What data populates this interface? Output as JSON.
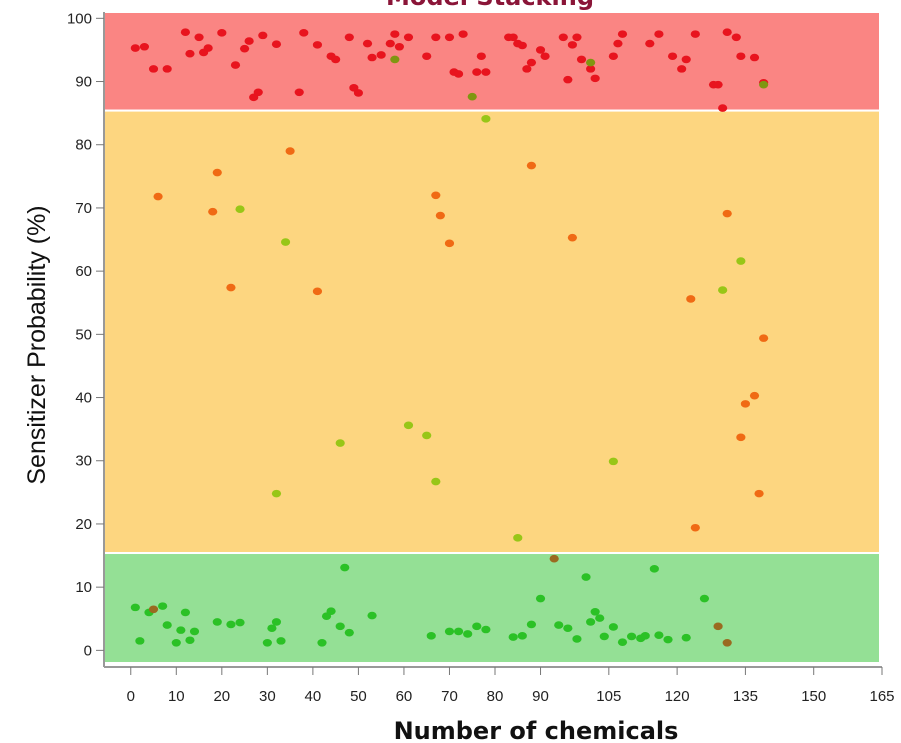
{
  "chart_data": {
    "type": "scatter",
    "title": "Model Stacking",
    "xlabel": "Number of chemicals",
    "ylabel": "Sensitizer Probability (%)",
    "xlim": [
      -5,
      165
    ],
    "ylim": [
      -2,
      101
    ],
    "x_ticks": [
      0,
      10,
      20,
      30,
      40,
      50,
      60,
      70,
      80,
      90,
      105,
      120,
      135,
      150,
      165
    ],
    "x_tick_labels": [
      "0",
      "10",
      "20",
      "30",
      "40",
      "50",
      "60",
      "70",
      "80",
      "90",
      "105",
      "120",
      "135",
      "150",
      "165"
    ],
    "y_ticks": [
      0,
      10,
      20,
      30,
      40,
      50,
      60,
      70,
      80,
      90,
      100
    ],
    "y_tick_labels": [
      "0",
      "10",
      "20",
      "30",
      "40",
      "50",
      "60",
      "70",
      "80",
      "90",
      "100"
    ],
    "grid": false,
    "legend": "none",
    "bands": [
      {
        "from": 85.4,
        "to": 101,
        "color": "#fa8583"
      },
      {
        "from": 15.4,
        "to": 85.4,
        "color": "#fdd680"
      },
      {
        "from": -2,
        "to": 15.4,
        "color": "#94e095"
      }
    ],
    "series": [
      {
        "color": "#e8141e",
        "points": [
          [
            1,
            95.3
          ],
          [
            3,
            95.5
          ],
          [
            5,
            92
          ],
          [
            8,
            92
          ],
          [
            12,
            97.8
          ],
          [
            13,
            94.4
          ],
          [
            15,
            97
          ],
          [
            16,
            94.6
          ],
          [
            17,
            95.3
          ],
          [
            20,
            97.7
          ],
          [
            23,
            92.6
          ],
          [
            25,
            95.2
          ],
          [
            26,
            96.4
          ],
          [
            27,
            87.5
          ],
          [
            28,
            88.3
          ],
          [
            29,
            97.3
          ],
          [
            32,
            95.9
          ],
          [
            37,
            88.3
          ],
          [
            38,
            97.7
          ],
          [
            41,
            95.8
          ],
          [
            44,
            94
          ],
          [
            45,
            93.5
          ],
          [
            48,
            97
          ],
          [
            49,
            89
          ],
          [
            50,
            88.2
          ],
          [
            52,
            96
          ],
          [
            53,
            93.8
          ],
          [
            55,
            94.2
          ],
          [
            57,
            96
          ],
          [
            58,
            97.5
          ],
          [
            59,
            95.5
          ],
          [
            61,
            97
          ],
          [
            65,
            94
          ],
          [
            67,
            97
          ],
          [
            70,
            97
          ],
          [
            71,
            91.5
          ],
          [
            72,
            91.2
          ],
          [
            73,
            97.5
          ],
          [
            76,
            91.5
          ],
          [
            77,
            94
          ],
          [
            78,
            91.5
          ],
          [
            83,
            97
          ],
          [
            84,
            97
          ],
          [
            85,
            96
          ],
          [
            86,
            95.7
          ],
          [
            87,
            92
          ],
          [
            88,
            93
          ],
          [
            90,
            95
          ],
          [
            91,
            94
          ],
          [
            95,
            97
          ],
          [
            96,
            90.3
          ],
          [
            97,
            95.8
          ],
          [
            98,
            97
          ],
          [
            99,
            93.5
          ],
          [
            101,
            92
          ],
          [
            102,
            90.5
          ],
          [
            106,
            94
          ],
          [
            107,
            96
          ],
          [
            108,
            97.5
          ],
          [
            114,
            96
          ],
          [
            116,
            97.5
          ],
          [
            119,
            94
          ],
          [
            121,
            92
          ],
          [
            122,
            93.5
          ],
          [
            124,
            97.5
          ],
          [
            128,
            89.5
          ],
          [
            129,
            89.5
          ],
          [
            131,
            97.8
          ],
          [
            133,
            97
          ],
          [
            134,
            94
          ],
          [
            137,
            93.8
          ],
          [
            139,
            89.8
          ],
          [
            130,
            85.8
          ]
        ]
      },
      {
        "color": "#f06a14",
        "points": [
          [
            6,
            71.8
          ],
          [
            18,
            69.4
          ],
          [
            19,
            75.6
          ],
          [
            22,
            57.4
          ],
          [
            35,
            79
          ],
          [
            41,
            56.8
          ],
          [
            67,
            72
          ],
          [
            68,
            68.8
          ],
          [
            70,
            64.4
          ],
          [
            88,
            76.7
          ],
          [
            97,
            65.3
          ],
          [
            123,
            55.6
          ],
          [
            124,
            19.4
          ],
          [
            131,
            69.1
          ],
          [
            134,
            33.7
          ],
          [
            135,
            39
          ],
          [
            137,
            40.3
          ],
          [
            138,
            24.8
          ],
          [
            139,
            49.4
          ]
        ]
      },
      {
        "color": "#98c617",
        "points": [
          [
            24,
            69.8
          ],
          [
            32,
            24.8
          ],
          [
            34,
            64.6
          ],
          [
            46,
            32.8
          ],
          [
            61,
            35.6
          ],
          [
            65,
            34
          ],
          [
            67,
            26.7
          ],
          [
            78,
            84.1
          ],
          [
            85,
            17.8
          ],
          [
            106,
            29.9
          ],
          [
            130,
            57
          ],
          [
            134,
            61.6
          ]
        ]
      },
      {
        "color": "#809611",
        "points": [
          [
            58,
            93.5
          ],
          [
            75,
            87.6
          ],
          [
            101,
            93
          ],
          [
            139,
            89.5
          ]
        ]
      },
      {
        "color": "#2bc126",
        "points": [
          [
            1,
            6.8
          ],
          [
            2,
            1.5
          ],
          [
            4,
            6
          ],
          [
            7,
            7
          ],
          [
            8,
            4
          ],
          [
            10,
            1.2
          ],
          [
            11,
            3.2
          ],
          [
            12,
            6
          ],
          [
            13,
            1.6
          ],
          [
            14,
            3
          ],
          [
            19,
            4.5
          ],
          [
            22,
            4.1
          ],
          [
            24,
            4.4
          ],
          [
            30,
            1.2
          ],
          [
            31,
            3.5
          ],
          [
            32,
            4.5
          ],
          [
            33,
            1.5
          ],
          [
            42,
            1.2
          ],
          [
            43,
            5.4
          ],
          [
            44,
            6.2
          ],
          [
            46,
            3.8
          ],
          [
            47,
            13.1
          ],
          [
            48,
            2.8
          ],
          [
            53,
            5.5
          ],
          [
            66,
            2.3
          ],
          [
            70,
            3
          ],
          [
            72,
            3
          ],
          [
            74,
            2.6
          ],
          [
            76,
            3.8
          ],
          [
            78,
            3.3
          ],
          [
            84,
            2.1
          ],
          [
            86,
            2.3
          ],
          [
            88,
            4.1
          ],
          [
            90,
            8.2
          ],
          [
            94,
            4
          ],
          [
            96,
            3.5
          ],
          [
            98,
            1.8
          ],
          [
            100,
            11.6
          ],
          [
            101,
            4.5
          ],
          [
            102,
            6.1
          ],
          [
            103,
            5.1
          ],
          [
            104,
            2.2
          ],
          [
            106,
            3.7
          ],
          [
            108,
            1.3
          ],
          [
            110,
            2.2
          ],
          [
            112,
            1.9
          ],
          [
            113,
            2.3
          ],
          [
            115,
            12.9
          ],
          [
            116,
            2.4
          ],
          [
            118,
            1.7
          ],
          [
            122,
            2
          ],
          [
            126,
            8.2
          ]
        ]
      },
      {
        "color": "#9a6a20",
        "points": [
          [
            5,
            6.5
          ],
          [
            93,
            14.5
          ],
          [
            129,
            3.8
          ],
          [
            131,
            1.2
          ]
        ]
      }
    ]
  }
}
